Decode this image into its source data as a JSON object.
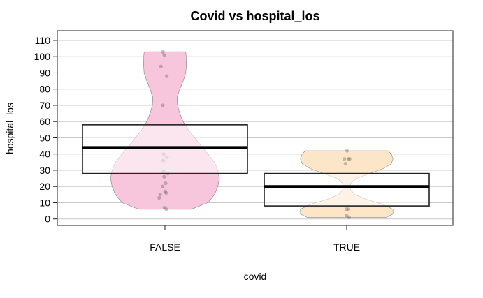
{
  "chart_data": {
    "type": "pirate",
    "title": "Covid vs hospital_los",
    "xlabel": "covid",
    "ylabel": "hospital_los",
    "categories": [
      "FALSE",
      "TRUE"
    ],
    "ylim": [
      -4,
      116
    ],
    "yticks": [
      0,
      10,
      20,
      30,
      40,
      50,
      60,
      70,
      80,
      90,
      100,
      110
    ],
    "grid": true,
    "groups": [
      {
        "category": "FALSE",
        "color": "#f7c6dc",
        "mean": 44,
        "ci": [
          28,
          58
        ],
        "range": [
          6,
          103
        ],
        "density": [
          [
            6,
            0.08
          ],
          [
            10,
            0.13
          ],
          [
            15,
            0.15
          ],
          [
            20,
            0.16
          ],
          [
            25,
            0.165
          ],
          [
            30,
            0.16
          ],
          [
            35,
            0.15
          ],
          [
            40,
            0.13
          ],
          [
            45,
            0.11
          ],
          [
            50,
            0.09
          ],
          [
            55,
            0.07
          ],
          [
            60,
            0.055
          ],
          [
            65,
            0.045
          ],
          [
            70,
            0.038
          ],
          [
            75,
            0.037
          ],
          [
            80,
            0.045
          ],
          [
            85,
            0.055
          ],
          [
            90,
            0.063
          ],
          [
            95,
            0.065
          ],
          [
            100,
            0.064
          ],
          [
            103,
            0.063
          ]
        ],
        "points": [
          [
            -0.012,
            103
          ],
          [
            -0.004,
            101
          ],
          [
            -0.024,
            94
          ],
          [
            0.011,
            88
          ],
          [
            -0.013,
            70
          ],
          [
            -0.008,
            40
          ],
          [
            0.012,
            38
          ],
          [
            -0.01,
            36
          ],
          [
            -0.009,
            29
          ],
          [
            0.018,
            28
          ],
          [
            -0.005,
            26
          ],
          [
            0.004,
            22
          ],
          [
            -0.014,
            20
          ],
          [
            0.001,
            17
          ],
          [
            0.007,
            16
          ],
          [
            -0.029,
            15
          ],
          [
            -0.035,
            13
          ],
          [
            -0.003,
            7
          ],
          [
            0.008,
            6
          ]
        ]
      },
      {
        "category": "TRUE",
        "color": "#fde5c7",
        "mean": 20,
        "ci": [
          8,
          28
        ],
        "range": [
          1,
          42
        ],
        "density": [
          [
            1,
            0.12
          ],
          [
            3,
            0.14
          ],
          [
            6,
            0.14
          ],
          [
            9,
            0.11
          ],
          [
            12,
            0.06
          ],
          [
            15,
            0.025
          ],
          [
            18,
            0.012
          ],
          [
            20,
            0.01
          ],
          [
            22,
            0.012
          ],
          [
            25,
            0.03
          ],
          [
            28,
            0.07
          ],
          [
            31,
            0.11
          ],
          [
            34,
            0.135
          ],
          [
            37,
            0.14
          ],
          [
            40,
            0.135
          ],
          [
            42,
            0.125
          ]
        ],
        "points": [
          [
            0.002,
            42
          ],
          [
            -0.014,
            37
          ],
          [
            0.011,
            37
          ],
          [
            0.018,
            37
          ],
          [
            -0.007,
            34
          ],
          [
            -0.002,
            6
          ],
          [
            0.011,
            6
          ],
          [
            0.0,
            2
          ],
          [
            0.014,
            1
          ]
        ]
      }
    ]
  }
}
